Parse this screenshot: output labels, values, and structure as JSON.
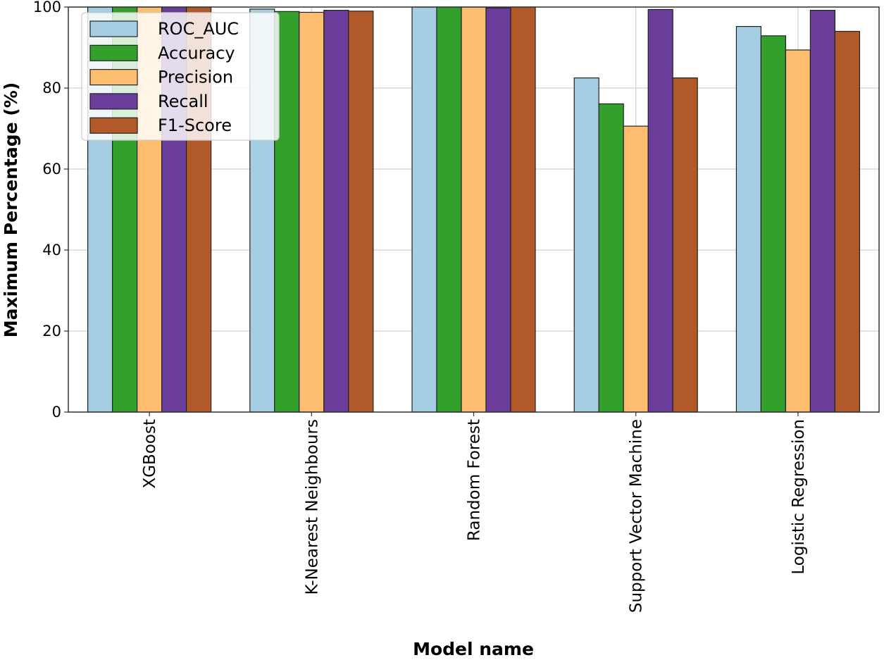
{
  "chart_data": {
    "type": "bar",
    "title": "",
    "xlabel": "Model name",
    "ylabel": "Maximum Percentage (%)",
    "ylim": [
      0,
      100
    ],
    "yticks": [
      0,
      20,
      40,
      60,
      80,
      100
    ],
    "grid": true,
    "legend_position": "top-left",
    "categories": [
      "XGBoost",
      "K-Nearest Neighbours",
      "Random Forest",
      "Support Vector Machine",
      "Logistic Regression"
    ],
    "series": [
      {
        "name": "ROC_AUC",
        "color": "#a6cee3",
        "values": [
          100,
          99.5,
          100,
          82.5,
          95.2
        ]
      },
      {
        "name": "Accuracy",
        "color": "#33a02c",
        "values": [
          100,
          98.9,
          100,
          76.1,
          92.9
        ]
      },
      {
        "name": "Precision",
        "color": "#fdbf6f",
        "values": [
          100,
          98.7,
          100,
          70.6,
          89.4
        ]
      },
      {
        "name": "Recall",
        "color": "#6a3d9a",
        "values": [
          100,
          99.2,
          99.8,
          99.4,
          99.2
        ]
      },
      {
        "name": "F1-Score",
        "color": "#b15928",
        "values": [
          100,
          99.0,
          100,
          82.5,
          94.0
        ]
      }
    ]
  }
}
